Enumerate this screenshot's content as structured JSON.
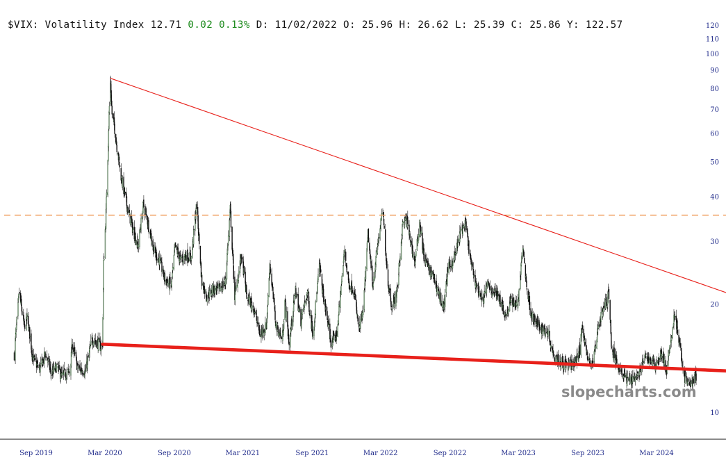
{
  "header": {
    "symbol": "$VIX:",
    "name": "Volatility Index",
    "last": "12.71",
    "change": "0.02",
    "change_pct": "0.13%",
    "date_label": "D:",
    "date": "11/02/2022",
    "open_label": "O:",
    "open": "25.96",
    "high_label": "H:",
    "high": "26.62",
    "low_label": "L:",
    "low": "25.39",
    "close_label": "C:",
    "close": "25.86",
    "y_label": "Y:",
    "y_value": "122.57"
  },
  "colors": {
    "up_candle": "#2e5a2e",
    "down_candle": "#111111",
    "trendline": "#e8201a",
    "reference_line": "#f0a060",
    "axis_text": "#1f2a8a",
    "positive_change": "#1a8a1a"
  },
  "watermark": "slopecharts.com",
  "chart_data": {
    "type": "candlestick",
    "y_scale": "log",
    "ylim": [
      9.5,
      122.57
    ],
    "y_ticks": [
      10,
      20,
      30,
      40,
      50,
      60,
      70,
      80,
      90,
      100,
      110,
      120
    ],
    "x_ticks": [
      "Sep 2019",
      "Mar 2020",
      "Sep 2020",
      "Mar 2021",
      "Sep 2021",
      "Mar 2022",
      "Sep 2022",
      "Mar 2023",
      "Sep 2023",
      "Mar 2024"
    ],
    "x_tick_dates": [
      "2019-09-01",
      "2020-03-01",
      "2020-09-01",
      "2021-03-01",
      "2021-09-01",
      "2022-03-01",
      "2022-09-01",
      "2023-03-01",
      "2023-09-01",
      "2024-03-01"
    ],
    "date_range": [
      "2019-07-01",
      "2024-08-02"
    ],
    "reference_lines": [
      {
        "style": "dashed",
        "y": 35.5
      }
    ],
    "trendlines": [
      {
        "style": "thin",
        "start": [
          "2020-03-16",
          85.5
        ],
        "end": [
          "2024-12-31",
          19.5
        ]
      },
      {
        "style": "thick",
        "start": [
          "2020-02-24",
          15.5
        ],
        "end": [
          "2024-12-31",
          12.9
        ]
      }
    ],
    "path_points": [
      [
        "2019-07-05",
        14.5
      ],
      [
        "2019-07-18",
        21.5
      ],
      [
        "2019-08-02",
        17.0
      ],
      [
        "2019-08-09",
        18.5
      ],
      [
        "2019-08-23",
        14.2
      ],
      [
        "2019-09-10",
        13.2
      ],
      [
        "2019-09-27",
        14.6
      ],
      [
        "2019-10-11",
        12.8
      ],
      [
        "2019-10-25",
        13.4
      ],
      [
        "2019-11-08",
        12.6
      ],
      [
        "2019-11-29",
        13.0
      ],
      [
        "2019-12-06",
        15.5
      ],
      [
        "2019-12-20",
        13.3
      ],
      [
        "2020-01-10",
        13.0
      ],
      [
        "2020-01-27",
        16.0
      ],
      [
        "2020-02-06",
        15.8
      ],
      [
        "2020-02-14",
        15.5
      ],
      [
        "2020-02-20",
        15.2
      ],
      [
        "2020-02-24",
        15.6
      ],
      [
        "2020-02-27",
        26.0
      ],
      [
        "2020-03-04",
        36.0
      ],
      [
        "2020-03-09",
        52.0
      ],
      [
        "2020-03-12",
        68.0
      ],
      [
        "2020-03-16",
        82.7
      ],
      [
        "2020-03-20",
        68.0
      ],
      [
        "2020-03-26",
        63.0
      ],
      [
        "2020-04-02",
        55.0
      ],
      [
        "2020-04-14",
        45.0
      ],
      [
        "2020-04-28",
        38.0
      ],
      [
        "2020-05-12",
        33.0
      ],
      [
        "2020-05-28",
        29.0
      ],
      [
        "2020-06-11",
        38.0
      ],
      [
        "2020-06-24",
        33.5
      ],
      [
        "2020-07-10",
        28.0
      ],
      [
        "2020-07-24",
        26.5
      ],
      [
        "2020-08-07",
        23.5
      ],
      [
        "2020-08-24",
        22.5
      ],
      [
        "2020-09-03",
        29.0
      ],
      [
        "2020-09-18",
        26.5
      ],
      [
        "2020-10-02",
        27.5
      ],
      [
        "2020-10-16",
        27.0
      ],
      [
        "2020-10-30",
        38.0
      ],
      [
        "2020-11-13",
        23.0
      ],
      [
        "2020-11-27",
        21.0
      ],
      [
        "2020-12-11",
        22.0
      ],
      [
        "2020-12-28",
        22.0
      ],
      [
        "2021-01-14",
        23.0
      ],
      [
        "2021-01-27",
        37.0
      ],
      [
        "2021-02-08",
        21.0
      ],
      [
        "2021-02-26",
        27.5
      ],
      [
        "2021-03-12",
        21.0
      ],
      [
        "2021-03-31",
        19.5
      ],
      [
        "2021-04-16",
        16.5
      ],
      [
        "2021-05-03",
        17.5
      ],
      [
        "2021-05-12",
        26.0
      ],
      [
        "2021-05-28",
        17.5
      ],
      [
        "2021-06-14",
        16.0
      ],
      [
        "2021-06-21",
        20.5
      ],
      [
        "2021-07-02",
        15.5
      ],
      [
        "2021-07-19",
        22.0
      ],
      [
        "2021-08-02",
        18.0
      ],
      [
        "2021-08-19",
        21.5
      ],
      [
        "2021-09-03",
        16.5
      ],
      [
        "2021-09-20",
        25.7
      ],
      [
        "2021-10-01",
        21.0
      ],
      [
        "2021-10-22",
        15.5
      ],
      [
        "2021-11-05",
        16.5
      ],
      [
        "2021-11-26",
        28.5
      ],
      [
        "2021-12-06",
        23.0
      ],
      [
        "2021-12-20",
        22.0
      ],
      [
        "2022-01-03",
        17.0
      ],
      [
        "2022-01-14",
        19.0
      ],
      [
        "2022-01-27",
        31.5
      ],
      [
        "2022-02-08",
        22.5
      ],
      [
        "2022-02-23",
        30.0
      ],
      [
        "2022-03-07",
        36.5
      ],
      [
        "2022-03-21",
        23.0
      ],
      [
        "2022-04-01",
        19.5
      ],
      [
        "2022-04-14",
        22.0
      ],
      [
        "2022-04-29",
        33.5
      ],
      [
        "2022-05-09",
        34.5
      ],
      [
        "2022-05-31",
        26.0
      ],
      [
        "2022-06-13",
        34.0
      ],
      [
        "2022-06-24",
        27.0
      ],
      [
        "2022-07-08",
        25.0
      ],
      [
        "2022-07-22",
        23.5
      ],
      [
        "2022-08-05",
        21.0
      ],
      [
        "2022-08-16",
        19.5
      ],
      [
        "2022-08-26",
        25.0
      ],
      [
        "2022-09-13",
        27.0
      ],
      [
        "2022-09-30",
        32.0
      ],
      [
        "2022-10-12",
        33.5
      ],
      [
        "2022-10-28",
        25.5
      ],
      [
        "2022-11-11",
        22.5
      ],
      [
        "2022-11-25",
        20.5
      ],
      [
        "2022-12-09",
        22.5
      ],
      [
        "2022-12-20",
        22.0
      ],
      [
        "2023-01-10",
        21.0
      ],
      [
        "2023-01-27",
        18.5
      ],
      [
        "2023-02-10",
        20.5
      ],
      [
        "2023-02-28",
        20.0
      ],
      [
        "2023-03-13",
        29.0
      ],
      [
        "2023-03-24",
        22.0
      ],
      [
        "2023-04-06",
        18.5
      ],
      [
        "2023-04-21",
        17.5
      ],
      [
        "2023-05-05",
        17.0
      ],
      [
        "2023-05-19",
        16.8
      ],
      [
        "2023-06-02",
        14.5
      ],
      [
        "2023-06-16",
        14.0
      ],
      [
        "2023-06-30",
        13.6
      ],
      [
        "2023-07-14",
        13.5
      ],
      [
        "2023-07-31",
        13.8
      ],
      [
        "2023-08-11",
        15.0
      ],
      [
        "2023-08-18",
        17.5
      ],
      [
        "2023-09-01",
        13.9
      ],
      [
        "2023-09-15",
        13.8
      ],
      [
        "2023-09-29",
        17.5
      ],
      [
        "2023-10-13",
        19.5
      ],
      [
        "2023-10-27",
        21.5
      ],
      [
        "2023-11-03",
        15.0
      ],
      [
        "2023-11-17",
        13.8
      ],
      [
        "2023-12-01",
        12.9
      ],
      [
        "2023-12-15",
        12.3
      ],
      [
        "2023-12-29",
        12.5
      ],
      [
        "2024-01-12",
        12.7
      ],
      [
        "2024-01-31",
        14.2
      ],
      [
        "2024-02-15",
        14.0
      ],
      [
        "2024-02-28",
        13.6
      ],
      [
        "2024-03-15",
        14.6
      ],
      [
        "2024-03-28",
        13.0
      ],
      [
        "2024-04-15",
        18.0
      ],
      [
        "2024-04-19",
        19.0
      ],
      [
        "2024-04-30",
        15.5
      ],
      [
        "2024-05-15",
        12.5
      ],
      [
        "2024-05-24",
        12.0
      ],
      [
        "2024-06-07",
        12.2
      ],
      [
        "2024-06-14",
        12.7
      ]
    ]
  }
}
